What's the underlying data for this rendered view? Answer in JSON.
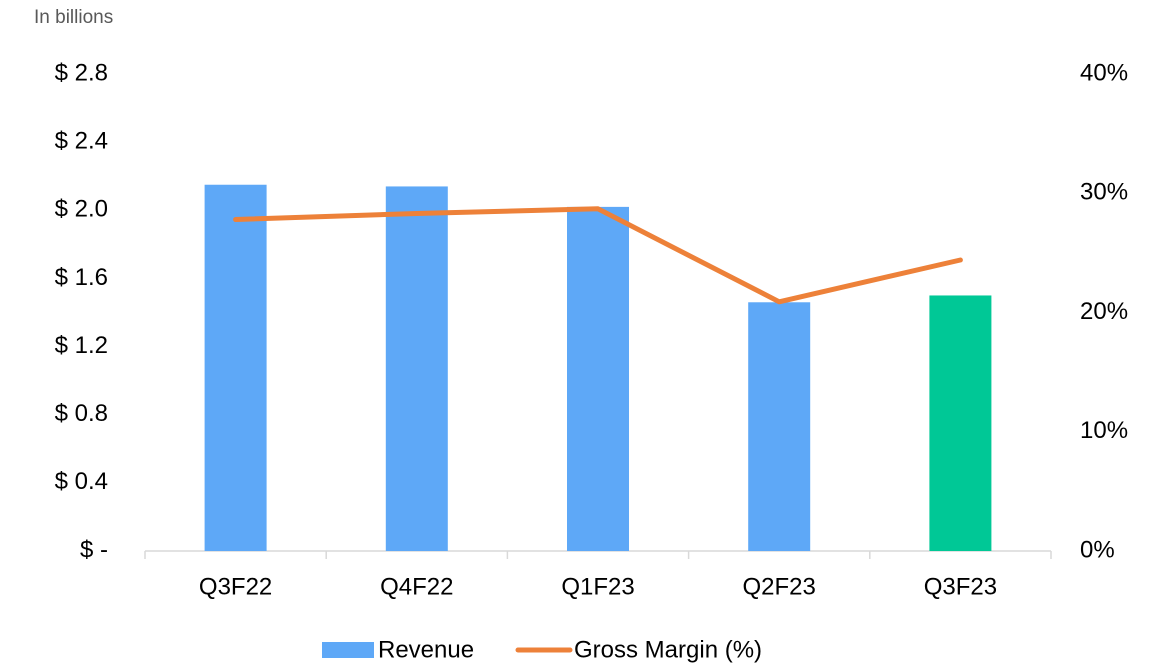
{
  "chart_data": {
    "type": "bar_line",
    "subtitle": "In billions",
    "categories": [
      "Q3F22",
      "Q4F22",
      "Q1F23",
      "Q2F23",
      "Q3F23"
    ],
    "series": [
      {
        "name": "Revenue",
        "type": "bar",
        "color": "#5ea8f7",
        "colors": [
          "#5ea8f7",
          "#5ea8f7",
          "#5ea8f7",
          "#5ea8f7",
          "#00c896"
        ],
        "values": [
          2.15,
          2.14,
          2.02,
          1.46,
          1.5
        ]
      },
      {
        "name": "Gross Margin (%)",
        "type": "line",
        "axis": "y2",
        "color": "#ed8139",
        "values": [
          27.8,
          28.3,
          28.7,
          20.9,
          24.4
        ]
      }
    ],
    "ylim": [
      0,
      2.8
    ],
    "yticks": [
      {
        "value": 0,
        "label": "$ -"
      },
      {
        "value": 0.4,
        "label": "$ 0.4"
      },
      {
        "value": 0.8,
        "label": "$ 0.8"
      },
      {
        "value": 1.2,
        "label": "$ 1.2"
      },
      {
        "value": 1.6,
        "label": "$ 1.6"
      },
      {
        "value": 2.0,
        "label": "$ 2.0"
      },
      {
        "value": 2.4,
        "label": "$ 2.4"
      },
      {
        "value": 2.8,
        "label": "$ 2.8"
      }
    ],
    "y2lim": [
      0,
      40
    ],
    "y2ticks": [
      {
        "value": 0,
        "label": "0%"
      },
      {
        "value": 10,
        "label": "10%"
      },
      {
        "value": 20,
        "label": "20%"
      },
      {
        "value": 30,
        "label": "30%"
      },
      {
        "value": 40,
        "label": "40%"
      }
    ],
    "grid": false,
    "legend": "bottom"
  }
}
